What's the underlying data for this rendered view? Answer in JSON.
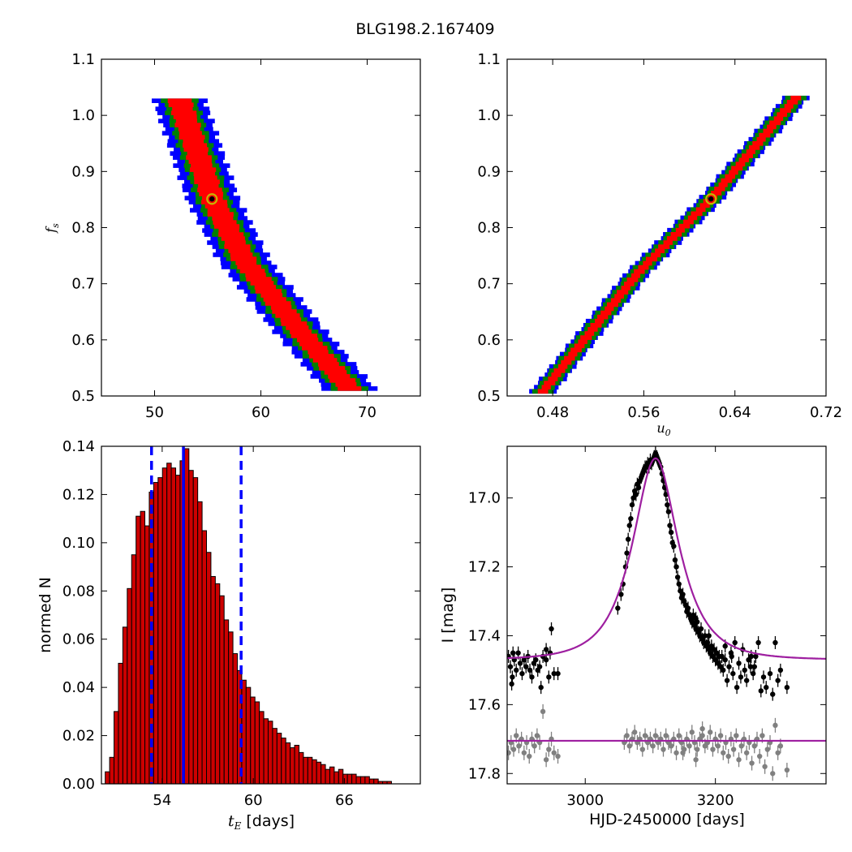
{
  "figure": {
    "title": "BLG198.2.167409"
  },
  "colors": {
    "outer": "#0000ff",
    "middle": "#008000",
    "inner": "#ff0000",
    "best": "#000000",
    "marker": "#c8b400",
    "hist_fill": "#cc0000",
    "vline": "#0000ff",
    "model": "#9e1fa0",
    "data": "#000000",
    "residual": "#808080"
  },
  "chart_data": [
    {
      "id": "fs_vs_tE",
      "type": "heatmap",
      "title": "",
      "xlabel": "",
      "ylabel": "f_s",
      "xlim": [
        45,
        75
      ],
      "ylim": [
        0.5,
        1.1
      ],
      "x_ticks": [
        50,
        60,
        70
      ],
      "y_ticks": [
        0.5,
        0.6,
        0.7,
        0.8,
        0.9,
        1.0,
        1.1
      ],
      "region_centerline": [
        [
          52.3,
          1.03
        ],
        [
          55.5,
          0.85
        ],
        [
          58.5,
          0.74
        ],
        [
          63.5,
          0.62
        ],
        [
          68.5,
          0.51
        ]
      ],
      "region_halfwidth": {
        "outer": 2.4,
        "middle": 1.6,
        "inner": 1.1
      },
      "best_fit": {
        "x": 55.4,
        "y": 0.851
      }
    },
    {
      "id": "fs_vs_u0",
      "type": "heatmap",
      "title": "",
      "xlabel": "u_0",
      "ylabel": "",
      "xlim": [
        0.44,
        0.72
      ],
      "ylim": [
        0.5,
        1.1
      ],
      "x_ticks": [
        0.48,
        0.56,
        0.64,
        0.72
      ],
      "y_ticks": [
        0.5,
        0.6,
        0.7,
        0.8,
        0.9,
        1.0,
        1.1
      ],
      "region_centerline": [
        [
          0.47,
          0.505
        ],
        [
          0.555,
          0.72
        ],
        [
          0.619,
          0.851
        ],
        [
          0.695,
          1.035
        ]
      ],
      "region_halfwidth": {
        "outer": 0.011,
        "middle": 0.0085,
        "inner": 0.0045
      },
      "best_fit": {
        "x": 0.619,
        "y": 0.851
      }
    },
    {
      "id": "tE_histogram",
      "type": "bar",
      "title": "",
      "xlabel": "t_E [days]",
      "ylabel": "normed N",
      "xlim": [
        50.0,
        71.0
      ],
      "ylim": [
        0.0,
        0.14
      ],
      "x_ticks": [
        54,
        60,
        66
      ],
      "y_ticks": [
        0.0,
        0.02,
        0.04,
        0.06,
        0.08,
        0.1,
        0.12,
        0.14
      ],
      "bin_start": 50.25,
      "bin_width": 0.29,
      "values": [
        0.005,
        0.011,
        0.03,
        0.05,
        0.065,
        0.081,
        0.095,
        0.111,
        0.113,
        0.107,
        0.121,
        0.125,
        0.127,
        0.131,
        0.133,
        0.131,
        0.128,
        0.134,
        0.139,
        0.13,
        0.127,
        0.117,
        0.105,
        0.096,
        0.086,
        0.083,
        0.078,
        0.068,
        0.063,
        0.054,
        0.047,
        0.043,
        0.04,
        0.036,
        0.034,
        0.03,
        0.027,
        0.026,
        0.023,
        0.021,
        0.019,
        0.017,
        0.015,
        0.016,
        0.013,
        0.011,
        0.011,
        0.01,
        0.009,
        0.008,
        0.006,
        0.007,
        0.005,
        0.006,
        0.004,
        0.004,
        0.004,
        0.003,
        0.003,
        0.003,
        0.002,
        0.002,
        0.001,
        0.001,
        0.001,
        0.0
      ],
      "vlines": [
        {
          "x": 53.3,
          "style": "dashed"
        },
        {
          "x": 55.4,
          "style": "solid"
        },
        {
          "x": 59.2,
          "style": "dashed"
        }
      ]
    },
    {
      "id": "light_curve",
      "type": "scatter",
      "title": "",
      "xlabel": "HJD-2450000 [days]",
      "ylabel": "I [mag]",
      "xlim": [
        2880,
        3370
      ],
      "ylim": [
        17.83,
        16.85
      ],
      "x_ticks": [
        3000,
        3200
      ],
      "y_ticks": [
        17.0,
        17.2,
        17.4,
        17.6,
        17.8
      ],
      "model": {
        "t0": 3108,
        "tE": 55.4,
        "u0": 0.619,
        "baseline": 17.47,
        "fs": 0.851
      },
      "residual_offset": 17.705,
      "series": [
        {
          "points": [
            [
              2882,
              17.46
            ],
            [
              2885,
              17.49
            ],
            [
              2888,
              17.52
            ],
            [
              2891,
              17.47
            ],
            [
              2894,
              17.5
            ],
            [
              2897,
              17.45
            ],
            [
              2900,
              17.48
            ],
            [
              2903,
              17.51
            ],
            [
              2906,
              17.47
            ],
            [
              2909,
              17.49
            ],
            [
              2912,
              17.46
            ],
            [
              2915,
              17.5
            ],
            [
              2918,
              17.52
            ],
            [
              2921,
              17.48
            ],
            [
              2924,
              17.47
            ],
            [
              2927,
              17.5
            ],
            [
              2930,
              17.49
            ],
            [
              2935,
              17.46
            ],
            [
              2940,
              17.44
            ],
            [
              2944,
              17.52
            ],
            [
              2948,
              17.38
            ],
            [
              2952,
              17.51
            ],
            [
              2958,
              17.51
            ],
            [
              2940,
              17.47
            ],
            [
              2946,
              17.45
            ],
            [
              2887,
              17.54
            ],
            [
              2889,
              17.45
            ],
            [
              2932,
              17.55
            ],
            [
              3050,
              17.32
            ],
            [
              3055,
              17.28
            ],
            [
              3058,
              17.25
            ],
            [
              3062,
              17.2
            ],
            [
              3064,
              17.16
            ],
            [
              3066,
              17.12
            ],
            [
              3068,
              17.08
            ],
            [
              3070,
              17.06
            ],
            [
              3072,
              17.02
            ],
            [
              3074,
              17.0
            ],
            [
              3076,
              16.98
            ],
            [
              3078,
              16.99
            ],
            [
              3080,
              16.96
            ],
            [
              3082,
              16.97
            ],
            [
              3084,
              16.95
            ],
            [
              3086,
              16.94
            ],
            [
              3088,
              16.93
            ],
            [
              3090,
              16.92
            ],
            [
              3092,
              16.91
            ],
            [
              3094,
              16.91
            ],
            [
              3096,
              16.9
            ],
            [
              3098,
              16.91
            ],
            [
              3100,
              16.89
            ],
            [
              3102,
              16.9
            ],
            [
              3104,
              16.89
            ],
            [
              3106,
              16.88
            ],
            [
              3108,
              16.87
            ],
            [
              3110,
              16.88
            ],
            [
              3112,
              16.89
            ],
            [
              3114,
              16.9
            ],
            [
              3116,
              16.91
            ],
            [
              3118,
              16.93
            ],
            [
              3120,
              16.95
            ],
            [
              3122,
              16.97
            ],
            [
              3124,
              16.99
            ],
            [
              3126,
              17.02
            ],
            [
              3128,
              17.04
            ],
            [
              3130,
              17.08
            ],
            [
              3132,
              17.1
            ],
            [
              3134,
              17.13
            ],
            [
              3136,
              17.14
            ],
            [
              3138,
              17.18
            ],
            [
              3140,
              17.2
            ],
            [
              3142,
              17.23
            ],
            [
              3144,
              17.25
            ],
            [
              3146,
              17.27
            ],
            [
              3148,
              17.29
            ],
            [
              3150,
              17.28
            ],
            [
              3152,
              17.3
            ],
            [
              3154,
              17.31
            ],
            [
              3156,
              17.33
            ],
            [
              3158,
              17.32
            ],
            [
              3160,
              17.34
            ],
            [
              3162,
              17.35
            ],
            [
              3164,
              17.36
            ],
            [
              3166,
              17.34
            ],
            [
              3168,
              17.37
            ],
            [
              3170,
              17.38
            ],
            [
              3172,
              17.36
            ],
            [
              3174,
              17.39
            ],
            [
              3176,
              17.4
            ],
            [
              3178,
              17.38
            ],
            [
              3180,
              17.41
            ],
            [
              3182,
              17.42
            ],
            [
              3184,
              17.4
            ],
            [
              3186,
              17.43
            ],
            [
              3188,
              17.42
            ],
            [
              3190,
              17.44
            ],
            [
              3192,
              17.45
            ],
            [
              3194,
              17.43
            ],
            [
              3196,
              17.46
            ],
            [
              3198,
              17.44
            ],
            [
              3200,
              17.47
            ],
            [
              3202,
              17.45
            ],
            [
              3204,
              17.48
            ],
            [
              3206,
              17.46
            ],
            [
              3208,
              17.49
            ],
            [
              3210,
              17.46
            ],
            [
              3212,
              17.5
            ],
            [
              3215,
              17.47
            ],
            [
              3218,
              17.53
            ],
            [
              3221,
              17.49
            ],
            [
              3224,
              17.45
            ],
            [
              3227,
              17.51
            ],
            [
              3230,
              17.42
            ],
            [
              3233,
              17.55
            ],
            [
              3236,
              17.48
            ],
            [
              3239,
              17.52
            ],
            [
              3242,
              17.44
            ],
            [
              3245,
              17.5
            ],
            [
              3248,
              17.53
            ],
            [
              3251,
              17.47
            ],
            [
              3254,
              17.49
            ],
            [
              3258,
              17.51
            ],
            [
              3262,
              17.46
            ],
            [
              3266,
              17.42
            ],
            [
              3270,
              17.56
            ],
            [
              3274,
              17.52
            ],
            [
              3278,
              17.55
            ],
            [
              3284,
              17.51
            ],
            [
              3288,
              17.57
            ],
            [
              3292,
              17.42
            ],
            [
              3296,
              17.53
            ],
            [
              3300,
              17.5
            ],
            [
              3310,
              17.55
            ],
            [
              3255,
              17.46
            ],
            [
              3260,
              17.49
            ],
            [
              3215,
              17.43
            ],
            [
              3225,
              17.46
            ],
            [
              3190,
              17.4
            ],
            [
              3170,
              17.35
            ]
          ]
        },
        {
          "points": [
            [
              2882,
              17.74
            ],
            [
              2886,
              17.71
            ],
            [
              2890,
              17.73
            ],
            [
              2894,
              17.69
            ],
            [
              2898,
              17.72
            ],
            [
              2902,
              17.7
            ],
            [
              2906,
              17.74
            ],
            [
              2910,
              17.71
            ],
            [
              2914,
              17.75
            ],
            [
              2918,
              17.7
            ],
            [
              2922,
              17.72
            ],
            [
              2926,
              17.69
            ],
            [
              2930,
              17.71
            ],
            [
              2935,
              17.62
            ],
            [
              2940,
              17.76
            ],
            [
              2944,
              17.73
            ],
            [
              2948,
              17.7
            ],
            [
              2952,
              17.74
            ],
            [
              2958,
              17.75
            ],
            [
              3060,
              17.71
            ],
            [
              3064,
              17.69
            ],
            [
              3068,
              17.72
            ],
            [
              3072,
              17.7
            ],
            [
              3076,
              17.68
            ],
            [
              3080,
              17.71
            ],
            [
              3084,
              17.7
            ],
            [
              3088,
              17.73
            ],
            [
              3092,
              17.69
            ],
            [
              3096,
              17.71
            ],
            [
              3100,
              17.7
            ],
            [
              3104,
              17.72
            ],
            [
              3108,
              17.69
            ],
            [
              3112,
              17.71
            ],
            [
              3116,
              17.7
            ],
            [
              3120,
              17.73
            ],
            [
              3124,
              17.69
            ],
            [
              3128,
              17.71
            ],
            [
              3132,
              17.72
            ],
            [
              3136,
              17.7
            ],
            [
              3140,
              17.74
            ],
            [
              3144,
              17.69
            ],
            [
              3148,
              17.71
            ],
            [
              3152,
              17.73
            ],
            [
              3156,
              17.7
            ],
            [
              3160,
              17.72
            ],
            [
              3164,
              17.68
            ],
            [
              3168,
              17.71
            ],
            [
              3172,
              17.73
            ],
            [
              3176,
              17.7
            ],
            [
              3180,
              17.69
            ],
            [
              3184,
              17.72
            ],
            [
              3188,
              17.71
            ],
            [
              3192,
              17.68
            ],
            [
              3196,
              17.73
            ],
            [
              3200,
              17.7
            ],
            [
              3204,
              17.72
            ],
            [
              3208,
              17.69
            ],
            [
              3212,
              17.74
            ],
            [
              3216,
              17.71
            ],
            [
              3220,
              17.75
            ],
            [
              3224,
              17.7
            ],
            [
              3228,
              17.73
            ],
            [
              3232,
              17.69
            ],
            [
              3236,
              17.76
            ],
            [
              3240,
              17.72
            ],
            [
              3244,
              17.7
            ],
            [
              3248,
              17.74
            ],
            [
              3252,
              17.71
            ],
            [
              3256,
              17.77
            ],
            [
              3260,
              17.72
            ],
            [
              3264,
              17.7
            ],
            [
              3268,
              17.75
            ],
            [
              3272,
              17.69
            ],
            [
              3276,
              17.78
            ],
            [
              3280,
              17.73
            ],
            [
              3284,
              17.71
            ],
            [
              3288,
              17.8
            ],
            [
              3292,
              17.66
            ],
            [
              3296,
              17.74
            ],
            [
              3300,
              17.72
            ],
            [
              3310,
              17.79
            ],
            [
              3170,
              17.76
            ],
            [
              3180,
              17.67
            ],
            [
              3150,
              17.74
            ]
          ]
        }
      ]
    }
  ]
}
